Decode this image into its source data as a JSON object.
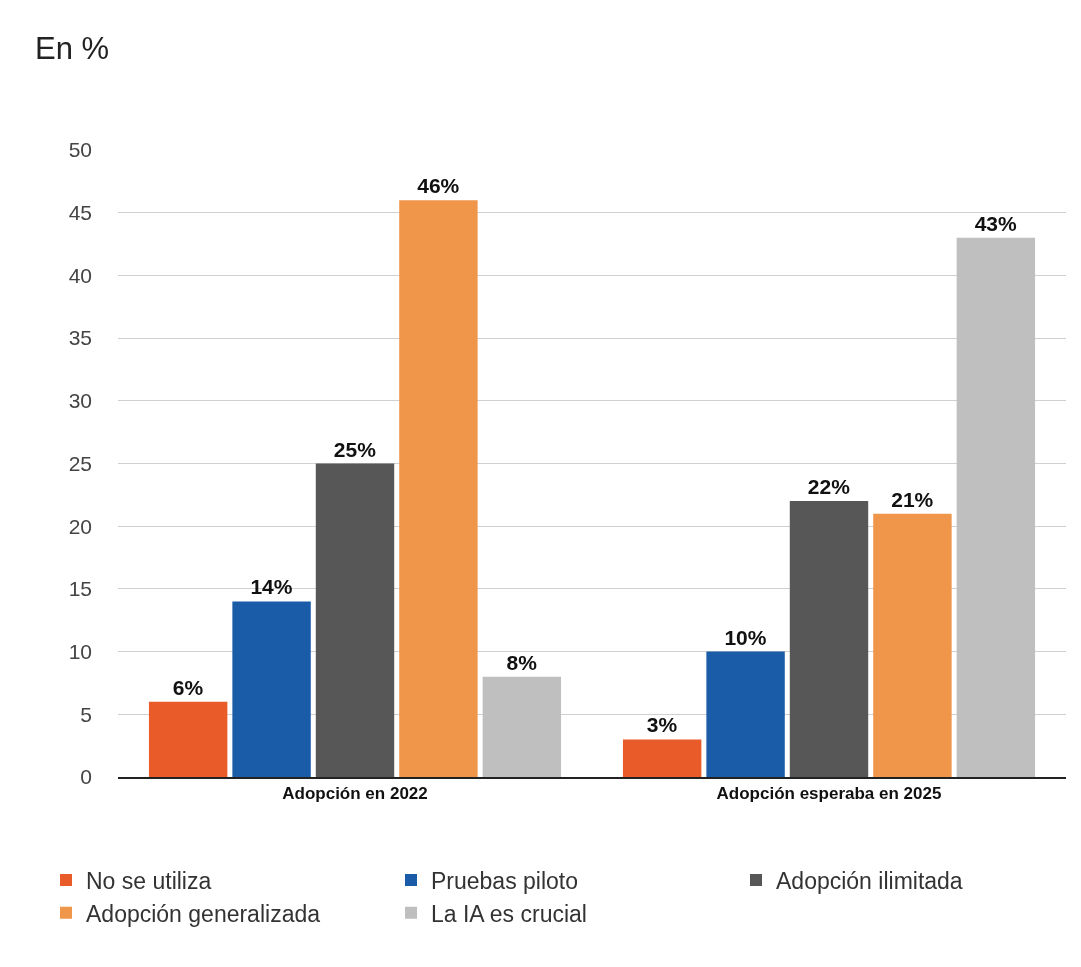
{
  "chart_data": {
    "type": "bar",
    "ylabel": "En %",
    "categories": [
      "Adopción en 2022",
      "Adopción esperaba en 2025"
    ],
    "series": [
      {
        "name": "No se utiliza",
        "color": "#e95c2a",
        "values": [
          6,
          3
        ],
        "value_labels": [
          "6%",
          "3%"
        ]
      },
      {
        "name": "Pruebas piloto",
        "color": "#1a5ca8",
        "values": [
          14,
          10
        ],
        "value_labels": [
          "14%",
          "10%"
        ]
      },
      {
        "name": "Adopción ilimitada",
        "color": "#575757",
        "values": [
          25,
          22
        ],
        "value_labels": [
          "25%",
          "22%"
        ]
      },
      {
        "name": "Adopción generalizada",
        "color": "#f0964a",
        "values": [
          46,
          21
        ],
        "value_labels": [
          "46%",
          "21%"
        ]
      },
      {
        "name": "La IA es crucial",
        "color": "#bfbfbf",
        "values": [
          8,
          43
        ],
        "value_labels": [
          "8%",
          "43%"
        ]
      }
    ],
    "ylim": [
      0,
      50
    ],
    "yticks": [
      0,
      5,
      10,
      15,
      20,
      25,
      30,
      35,
      40,
      45,
      50
    ],
    "grid": "y",
    "legend": "bottom"
  }
}
